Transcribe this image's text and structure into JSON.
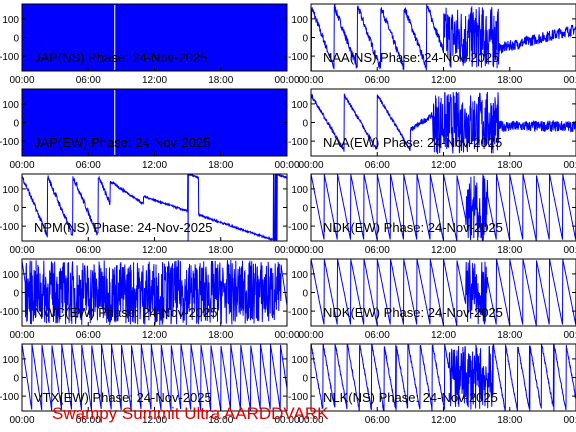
{
  "station_label": "Swampy Summit Ultra AARDDVARK",
  "colors": {
    "trace": "#0000ff",
    "footer": "#e00000",
    "frame": "#000000"
  },
  "x_ticks": [
    "00:00",
    "06:00",
    "12:00",
    "18:00",
    "00:00"
  ],
  "y_ticks": [
    "100",
    "0",
    "-100"
  ],
  "chart_data": [
    {
      "type": "line",
      "title": "JAP(NS) Phase: 24-Nov-2025",
      "xlim": [
        0,
        24
      ],
      "ylim": [
        -180,
        180
      ],
      "style": "saturated"
    },
    {
      "type": "line",
      "title": "NAA(NS) Phase: 24-Nov-2025",
      "xlim": [
        0,
        24
      ],
      "ylim": [
        -180,
        180
      ],
      "style": "naa_ns"
    },
    {
      "type": "line",
      "title": "JAP(EW) Phase: 24-Nov-2025",
      "xlim": [
        0,
        24
      ],
      "ylim": [
        -180,
        180
      ],
      "style": "saturated"
    },
    {
      "type": "line",
      "title": "NAA(EW) Phase: 24-Nov-2025",
      "xlim": [
        0,
        24
      ],
      "ylim": [
        -180,
        180
      ],
      "style": "naa_ew"
    },
    {
      "type": "line",
      "title": "NPM(NS) Phase: 24-Nov-2025",
      "xlim": [
        0,
        24
      ],
      "ylim": [
        -180,
        180
      ],
      "style": "npm"
    },
    {
      "type": "line",
      "title": "NDK(EW) Phase: 24-Nov-2025",
      "xlim": [
        0,
        24
      ],
      "ylim": [
        -180,
        180
      ],
      "style": "ndk"
    },
    {
      "type": "line",
      "title": "NWC(EW) Phase: 24-Nov-2025",
      "xlim": [
        0,
        24
      ],
      "ylim": [
        -180,
        180
      ],
      "style": "nwc"
    },
    {
      "type": "line",
      "title": "NDK(EW) Phase: 24-Nov-2025",
      "xlim": [
        0,
        24
      ],
      "ylim": [
        -180,
        180
      ],
      "style": "ndk"
    },
    {
      "type": "line",
      "title": "VTX(EW) Phase: 24-Nov-2025",
      "xlim": [
        0,
        24
      ],
      "ylim": [
        -180,
        180
      ],
      "style": "vtx"
    },
    {
      "type": "line",
      "title": "NLK(NS) Phase: 24-Nov-2025",
      "xlim": [
        0,
        24
      ],
      "ylim": [
        -180,
        180
      ],
      "style": "nlk"
    }
  ]
}
